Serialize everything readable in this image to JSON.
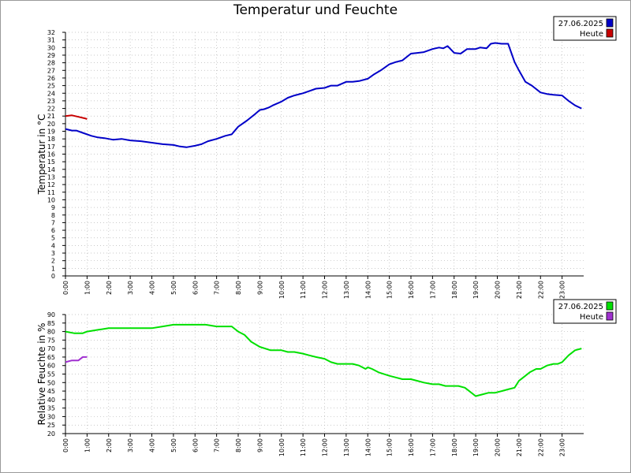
{
  "chart_title": "Temperatur und Feuchte",
  "chart_data": [
    {
      "type": "line",
      "title": "Temperatur und Feuchte",
      "xlabel": "",
      "ylabel": "Temperatur in °C",
      "x_ticks": [
        "0:00",
        "1:00",
        "2:00",
        "3:00",
        "4:00",
        "5:00",
        "6:00",
        "7:00",
        "8:00",
        "9:00",
        "10:00",
        "11:00",
        "12:00",
        "13:00",
        "14:00",
        "15:00",
        "16:00",
        "17:00",
        "18:00",
        "19:00",
        "20:00",
        "21:00",
        "22:00",
        "23:00"
      ],
      "xlim": [
        0,
        24
      ],
      "ylim": [
        0,
        32
      ],
      "y_ticks": [
        0,
        1,
        2,
        3,
        4,
        5,
        6,
        7,
        8,
        9,
        10,
        11,
        12,
        13,
        14,
        15,
        16,
        17,
        18,
        19,
        20,
        21,
        22,
        23,
        24,
        25,
        26,
        27,
        28,
        29,
        30,
        31,
        32
      ],
      "grid": true,
      "legend_position": "top-right",
      "series": [
        {
          "name": "27.06.2025",
          "color": "#0000c8",
          "x": [
            0,
            0.3,
            0.5,
            0.8,
            1.2,
            1.5,
            1.8,
            2.2,
            2.6,
            3,
            3.5,
            4,
            4.5,
            5,
            5.3,
            5.6,
            6,
            6.3,
            6.6,
            7,
            7.4,
            7.7,
            8,
            8.4,
            8.8,
            9,
            9.2,
            9.4,
            9.6,
            10,
            10.3,
            10.6,
            11,
            11.3,
            11.6,
            12,
            12.3,
            12.6,
            13,
            13.3,
            13.6,
            14,
            14.3,
            14.6,
            15,
            15.3,
            15.6,
            16,
            16.3,
            16.6,
            17,
            17.3,
            17.5,
            17.7,
            18,
            18.3,
            18.6,
            19,
            19.2,
            19.5,
            19.7,
            19.9,
            20.2,
            20.5,
            20.8,
            21,
            21.3,
            21.6,
            22,
            22.3,
            22.6,
            23,
            23.3,
            23.6,
            23.9
          ],
          "y": [
            19.3,
            19.1,
            19.1,
            18.8,
            18.4,
            18.2,
            18.1,
            17.9,
            18,
            17.8,
            17.7,
            17.5,
            17.3,
            17.2,
            17,
            16.9,
            17.1,
            17.3,
            17.7,
            18,
            18.4,
            18.6,
            19.6,
            20.4,
            21.3,
            21.8,
            21.9,
            22.1,
            22.4,
            22.9,
            23.4,
            23.7,
            24,
            24.3,
            24.6,
            24.7,
            25,
            25,
            25.5,
            25.5,
            25.6,
            25.9,
            26.5,
            27,
            27.8,
            28.1,
            28.3,
            29.2,
            29.3,
            29.4,
            29.8,
            30,
            29.9,
            30.2,
            29.3,
            29.2,
            29.8,
            29.8,
            30,
            29.9,
            30.5,
            30.6,
            30.5,
            30.5,
            28.1,
            27,
            25.5,
            25,
            24.1,
            23.9,
            23.8,
            23.7,
            23,
            22.4,
            22
          ]
        },
        {
          "name": "Heute",
          "color": "#c80000",
          "x": [
            0,
            0.3,
            0.6,
            0.9,
            1
          ],
          "y": [
            21,
            21.1,
            20.9,
            20.7,
            20.6
          ]
        }
      ]
    },
    {
      "type": "line",
      "title": "",
      "xlabel": "",
      "ylabel": "Relative Feuchte in %",
      "x_ticks": [
        "0:00",
        "1:00",
        "2:00",
        "3:00",
        "4:00",
        "5:00",
        "6:00",
        "7:00",
        "8:00",
        "9:00",
        "10:00",
        "11:00",
        "12:00",
        "13:00",
        "14:00",
        "15:00",
        "16:00",
        "17:00",
        "18:00",
        "19:00",
        "20:00",
        "21:00",
        "22:00",
        "23:00"
      ],
      "xlim": [
        0,
        24
      ],
      "ylim": [
        20,
        90
      ],
      "y_ticks": [
        20,
        25,
        30,
        35,
        40,
        45,
        50,
        55,
        60,
        65,
        70,
        75,
        80,
        85,
        90
      ],
      "grid": true,
      "legend_position": "top-right",
      "series": [
        {
          "name": "27.06.2025",
          "color": "#00e000",
          "x": [
            0,
            0.4,
            0.8,
            1,
            1.5,
            2,
            2.5,
            3,
            3.5,
            4,
            4.5,
            5,
            5.5,
            6,
            6.5,
            7,
            7.5,
            7.7,
            8,
            8.3,
            8.6,
            9,
            9.5,
            10,
            10.3,
            10.6,
            11,
            11.3,
            11.6,
            12,
            12.3,
            12.6,
            13,
            13.3,
            13.6,
            13.9,
            14,
            14.2,
            14.5,
            15,
            15.3,
            15.6,
            16,
            16.3,
            16.6,
            17,
            17.3,
            17.6,
            17.9,
            18.2,
            18.5,
            18.7,
            19,
            19.3,
            19.6,
            19.9,
            20.2,
            20.5,
            20.8,
            21,
            21.2,
            21.5,
            21.8,
            22,
            22.3,
            22.6,
            22.8,
            23,
            23.3,
            23.6,
            23.9
          ],
          "y": [
            80,
            79,
            79,
            80,
            81,
            82,
            82,
            82,
            82,
            82,
            83,
            84,
            84,
            84,
            84,
            83,
            83,
            83,
            80,
            78,
            74,
            71,
            69,
            69,
            68,
            68,
            67,
            66,
            65,
            64,
            62,
            61,
            61,
            61,
            60,
            58,
            59,
            58,
            56,
            54,
            53,
            52,
            52,
            51,
            50,
            49,
            49,
            48,
            48,
            48,
            47,
            45,
            42,
            43,
            44,
            44,
            45,
            46,
            47,
            51,
            53,
            56,
            58,
            58,
            60,
            61,
            61,
            62,
            66,
            69,
            70
          ]
        },
        {
          "name": "Heute",
          "color": "#a030d0",
          "x": [
            0,
            0.3,
            0.6,
            0.8,
            1
          ],
          "y": [
            62,
            63,
            63,
            65,
            65
          ]
        }
      ]
    }
  ]
}
